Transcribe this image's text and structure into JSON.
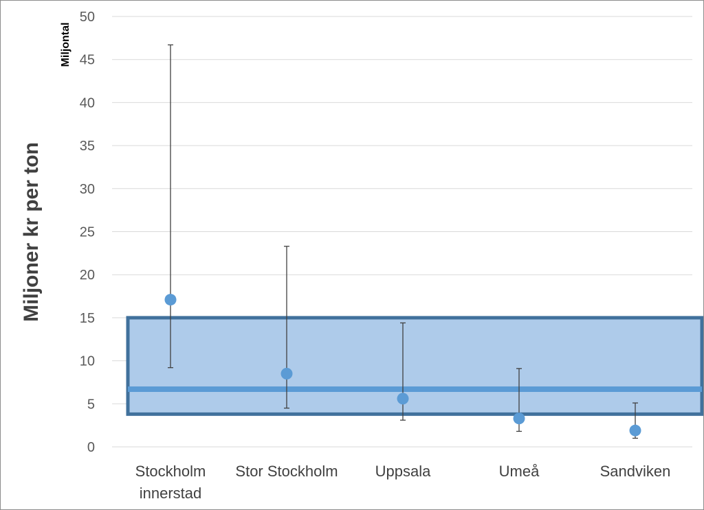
{
  "chart_data": {
    "type": "scatter",
    "title": "",
    "ylabel": "Miljoner kr per ton",
    "unit_label": "Miljontal",
    "ylim": [
      0,
      50
    ],
    "yticks": [
      0,
      5,
      10,
      15,
      20,
      25,
      30,
      35,
      40,
      45,
      50
    ],
    "grid": true,
    "categories": [
      [
        "Stockholm",
        "innerstad"
      ],
      [
        "Stor Stockholm"
      ],
      [
        "Uppsala"
      ],
      [
        "Umeå"
      ],
      [
        "Sandviken"
      ]
    ],
    "series": [
      {
        "values": [
          17.1,
          8.5,
          5.6,
          3.3,
          1.9
        ],
        "error_low": [
          9.2,
          4.5,
          3.1,
          1.8,
          1.0
        ],
        "error_high": [
          46.7,
          23.3,
          14.4,
          9.1,
          5.1
        ]
      }
    ],
    "reference_band": {
      "low": 3.8,
      "high": 15.0,
      "line": 6.7
    },
    "colors": {
      "point": "#5b9bd5",
      "band_fill": "#aecbea",
      "band_border": "#41719c",
      "band_line": "#5b9bd5",
      "error_bar": "#404040",
      "grid": "#d9d9d9"
    }
  }
}
